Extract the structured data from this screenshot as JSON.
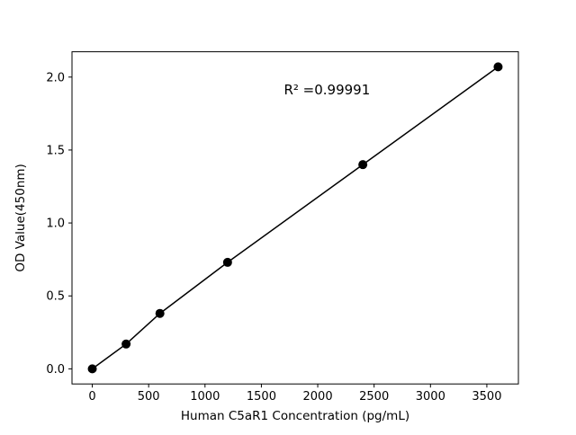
{
  "chart_data": {
    "type": "scatter",
    "title": "",
    "xlabel": "Human C5aR1 Concentration (pg/mL)",
    "ylabel": "OD Value(450nm)",
    "x": [
      0,
      300,
      600,
      1200,
      2400,
      3600
    ],
    "y": [
      0.0,
      0.17,
      0.38,
      0.73,
      1.4,
      2.07
    ],
    "annotation": "R² =0.99991",
    "annotation_xy": [
      1700,
      1.88
    ],
    "xlim": [
      -180,
      3780
    ],
    "ylim": [
      -0.1035,
      2.1735
    ],
    "xticks": [
      0,
      500,
      1000,
      1500,
      2000,
      2500,
      3000,
      3500
    ],
    "xtick_labels": [
      "0",
      "500",
      "1000",
      "1500",
      "2000",
      "2500",
      "3000",
      "3500"
    ],
    "yticks": [
      0.0,
      0.5,
      1.0,
      1.5,
      2.0
    ],
    "ytick_labels": [
      "0.0",
      "0.5",
      "1.0",
      "1.5",
      "2.0"
    ],
    "line_color": "#000000",
    "marker_color": "#000000",
    "background_color": "#ffffff",
    "grid": false,
    "legend_position": "none"
  }
}
